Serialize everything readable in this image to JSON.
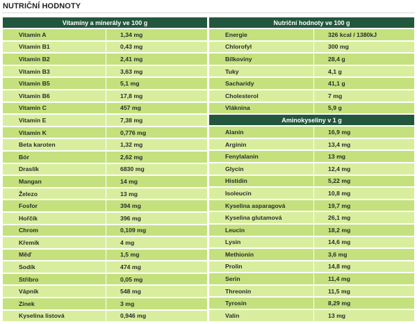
{
  "page": {
    "title": "NUTRIČNÍ HODNOTY"
  },
  "vitamins": {
    "header": "Vitamíny a minerály ve 100 g",
    "rows": [
      {
        "name": "Vitamin A",
        "value": "1,34 mg"
      },
      {
        "name": "Vitamin B1",
        "value": "0,43 mg"
      },
      {
        "name": "Vitamin B2",
        "value": "2,41 mg"
      },
      {
        "name": "Vitamin B3",
        "value": "3,63 mg"
      },
      {
        "name": "Vitamin B5",
        "value": "5,1 mg"
      },
      {
        "name": "Vitamin B6",
        "value": "17,8 mg"
      },
      {
        "name": "Vitamin C",
        "value": "457 mg"
      },
      {
        "name": "Vitamin E",
        "value": "7,38 mg"
      },
      {
        "name": "Vitamin K",
        "value": "0,776 mg"
      },
      {
        "name": "Beta karoten",
        "value": "1,32 mg"
      },
      {
        "name": "Bór",
        "value": "2,62 mg"
      },
      {
        "name": "Draslík",
        "value": "6830 mg"
      },
      {
        "name": "Mangan",
        "value": "14 mg"
      },
      {
        "name": "Železo",
        "value": "13 mg"
      },
      {
        "name": "Fosfor",
        "value": "394 mg"
      },
      {
        "name": "Hořčík",
        "value": "396 mg"
      },
      {
        "name": "Chrom",
        "value": "0,109 mg"
      },
      {
        "name": "Křemík",
        "value": "4 mg"
      },
      {
        "name": "Měď",
        "value": "1,5 mg"
      },
      {
        "name": "Sodík",
        "value": "474 mg"
      },
      {
        "name": "Stříbro",
        "value": "0,05 mg"
      },
      {
        "name": "Vápník",
        "value": "548 mg"
      },
      {
        "name": "Zinek",
        "value": "3 mg"
      },
      {
        "name": "Kyselina listová",
        "value": "0,946 mg"
      }
    ]
  },
  "nutrition": {
    "header": "Nutriční hodnoty ve 100 g",
    "rows": [
      {
        "name": "Energie",
        "value": "326 kcal / 1380kJ"
      },
      {
        "name": "Chlorofyl",
        "value": "300 mg"
      },
      {
        "name": "Bílkoviny",
        "value": "28,4 g"
      },
      {
        "name": "Tuky",
        "value": "4,1 g"
      },
      {
        "name": "Sacharidy",
        "value": "41,1 g"
      },
      {
        "name": "Cholesterol",
        "value": "7 mg"
      },
      {
        "name": "Vláknina",
        "value": "5,9 g"
      }
    ]
  },
  "amino": {
    "header": "Aminokyseliny v 1 g",
    "rows": [
      {
        "name": "Alanin",
        "value": "16,9 mg"
      },
      {
        "name": "Arginin",
        "value": "13,4 mg"
      },
      {
        "name": "Fenylalanin",
        "value": "13 mg"
      },
      {
        "name": "Glycin",
        "value": "12,4 mg"
      },
      {
        "name": "Histidin",
        "value": "5,22 mg"
      },
      {
        "name": "Isoleucin",
        "value": "10,8 mg"
      },
      {
        "name": "Kyselina asparagová",
        "value": "19,7 mg"
      },
      {
        "name": "Kyselina glutamová",
        "value": "26,1 mg"
      },
      {
        "name": "Leucin",
        "value": "18,2 mg"
      },
      {
        "name": "Lysin",
        "value": "14,6 mg"
      },
      {
        "name": "Methionin",
        "value": "3,6 mg"
      },
      {
        "name": "Prolin",
        "value": "14,8 mg"
      },
      {
        "name": "Serin",
        "value": "11,4 mg"
      },
      {
        "name": "Threonin",
        "value": "11,5 mg"
      },
      {
        "name": "Tyrosin",
        "value": "8,29 mg"
      },
      {
        "name": "Valin",
        "value": "13 mg"
      }
    ]
  },
  "colors": {
    "header_bg": "#23573d",
    "row_dark": "#c4e17e",
    "row_light": "#d8ee9e"
  }
}
